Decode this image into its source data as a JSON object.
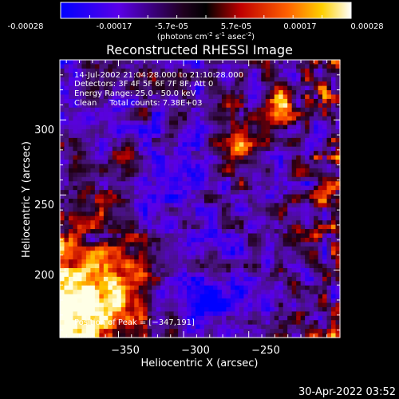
{
  "colorbar": {
    "tick_labels": [
      "-0.00028",
      "-0.00017",
      "-5.7e-05",
      "5.7e-05",
      "0.00017",
      "0.00028"
    ],
    "units_prefix": "(photons cm",
    "units_exp1": "-2",
    "units_mid": " s",
    "units_exp2": "-1",
    "units_mid2": " asec",
    "units_exp3": "-2",
    "units_suffix": ")"
  },
  "chart_data": {
    "type": "heatmap",
    "title": "Reconstructed RHESSI Image",
    "xlabel": "Heliocentric X (arcsec)",
    "ylabel": "Heliocentric Y (arcsec)",
    "xlim": [
      -395,
      -180
    ],
    "ylim": [
      155,
      340
    ],
    "x_ticks": [
      -350,
      -300,
      -250
    ],
    "y_ticks": [
      200,
      250,
      300
    ],
    "x_tick_labels": [
      "−350",
      "−300",
      "−250"
    ],
    "y_tick_labels": [
      "200",
      "250",
      "300"
    ],
    "value_range": [
      -0.00028,
      0.00028
    ],
    "colormap": [
      "#0000ff",
      "#7b00e0",
      "#2a0a3a",
      "#a00000",
      "#ff4000",
      "#ffc000",
      "#ffffe0"
    ],
    "peak": {
      "x": -347,
      "y": 191
    },
    "annotations": [
      "14-Jul-2002 21:04:28.000 to 21:10:28.000",
      "Detectors: 3F 4F 5F 6F 7F 8F, Att 0",
      "Energy Range: 25.0 - 50.0 keV",
      "Clean     Total counts: 7.38E+03",
      "Position of Peak = [−347,191]"
    ]
  },
  "footer": {
    "timestamp": "30-Apr-2022 03:52"
  }
}
